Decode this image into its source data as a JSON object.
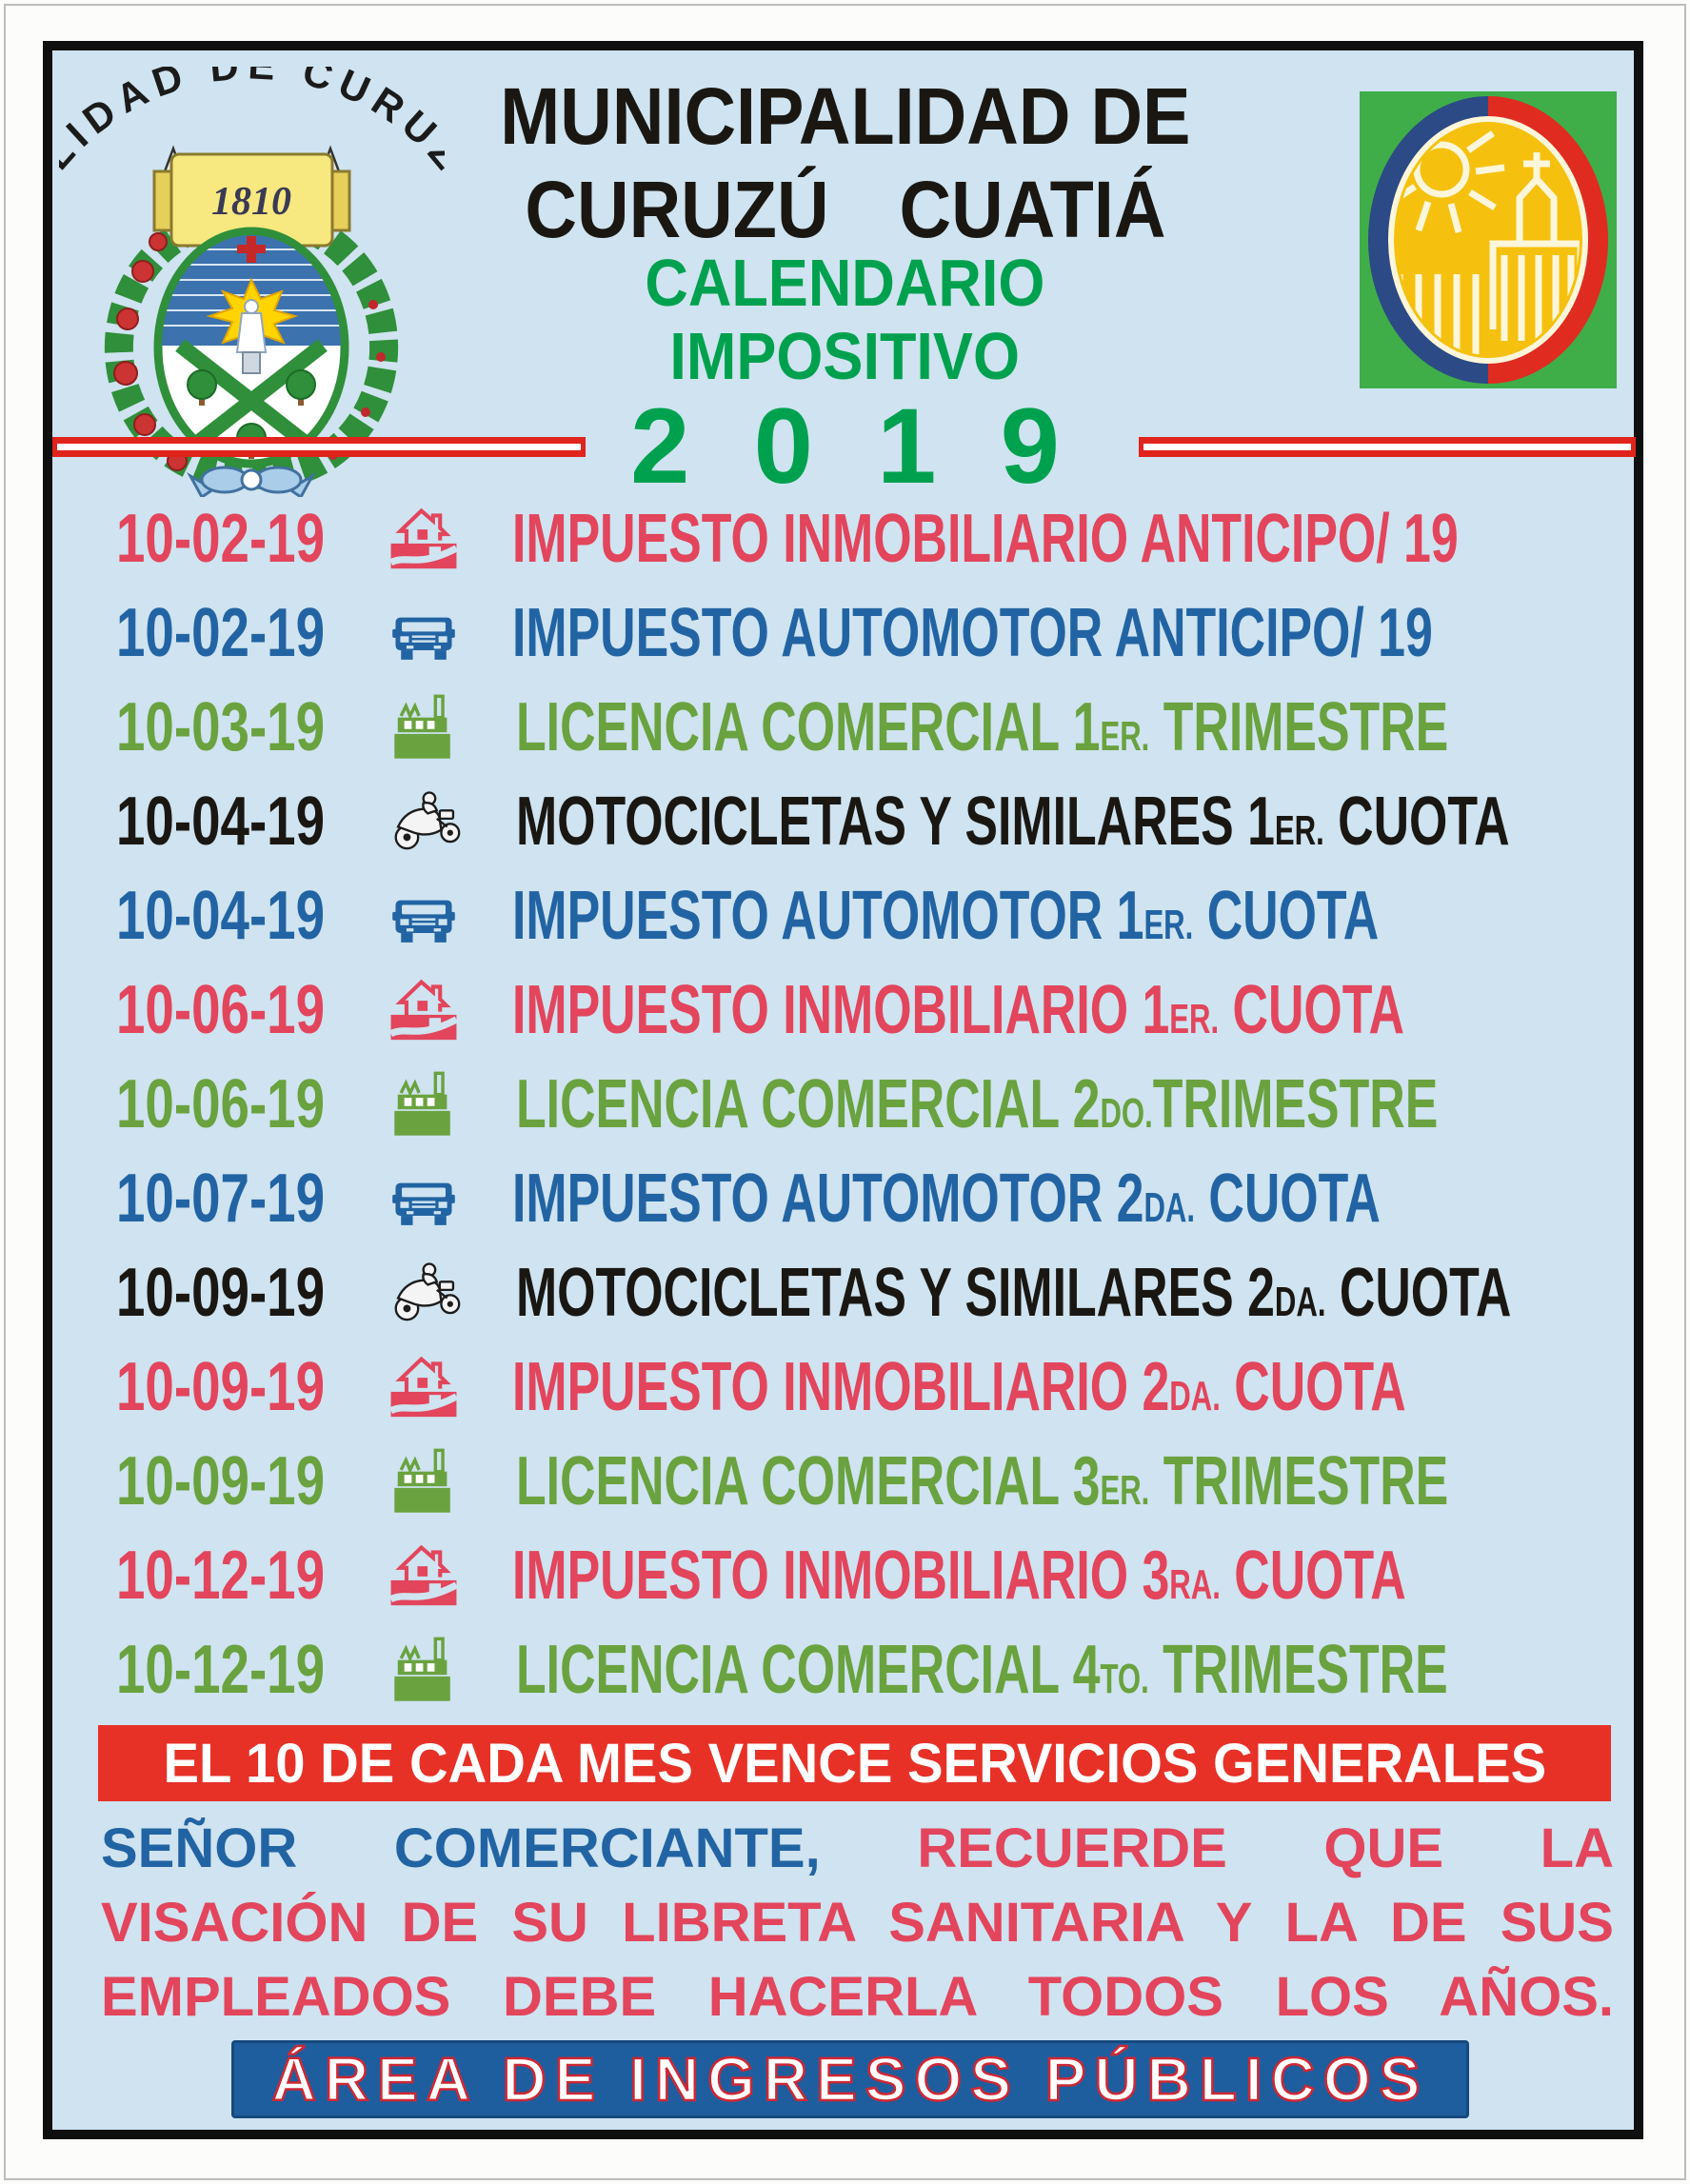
{
  "poster": {
    "header": {
      "crest": {
        "arc_text": "MUNICIPALIDAD DE CURUZU CUATIA",
        "banner_year": "1810"
      },
      "org_line1": "MUNICIPALIDAD DE",
      "org_line2": "CURUZÚ CUATIÁ",
      "calendar_line1": "CALENDARIO",
      "calendar_line2": "IMPOSITIVO",
      "year": "2019"
    },
    "rows": [
      {
        "date": "10-02-19",
        "icon": "house-icon",
        "color": "red",
        "label": [
          {
            "t": "IMPUESTO INMOBILIARIO ANTICIPO/ 19"
          }
        ]
      },
      {
        "date": "10-02-19",
        "icon": "car-icon",
        "color": "blue",
        "label": [
          {
            "t": "IMPUESTO AUTOMOTOR ANTICIPO/ 19"
          }
        ]
      },
      {
        "date": "10-03-19",
        "icon": "factory-icon",
        "color": "green",
        "label": [
          {
            "t": "LICENCIA COMERCIAL 1"
          },
          {
            "t": "ER.",
            "small": true
          },
          {
            "t": " TRIMESTRE"
          }
        ]
      },
      {
        "date": "10-04-19",
        "icon": "motorcycle-icon",
        "color": "black",
        "label": [
          {
            "t": "MOTOCICLETAS Y SIMILARES 1"
          },
          {
            "t": "ER.",
            "small": true
          },
          {
            "t": " CUOTA"
          }
        ]
      },
      {
        "date": "10-04-19",
        "icon": "car-icon",
        "color": "blue",
        "label": [
          {
            "t": "IMPUESTO AUTOMOTOR 1"
          },
          {
            "t": "ER.",
            "small": true
          },
          {
            "t": " CUOTA"
          }
        ]
      },
      {
        "date": "10-06-19",
        "icon": "house-icon",
        "color": "red",
        "label": [
          {
            "t": "IMPUESTO INMOBILIARIO 1"
          },
          {
            "t": "ER.",
            "small": true
          },
          {
            "t": " CUOTA"
          }
        ]
      },
      {
        "date": "10-06-19",
        "icon": "factory-icon",
        "color": "green",
        "label": [
          {
            "t": "LICENCIA COMERCIAL 2"
          },
          {
            "t": "DO.",
            "small": true
          },
          {
            "t": "TRIMESTRE"
          }
        ]
      },
      {
        "date": "10-07-19",
        "icon": "car-icon",
        "color": "blue",
        "label": [
          {
            "t": "IMPUESTO AUTOMOTOR 2"
          },
          {
            "t": "DA.",
            "small": true
          },
          {
            "t": " CUOTA"
          }
        ]
      },
      {
        "date": "10-09-19",
        "icon": "motorcycle-icon",
        "color": "black",
        "label": [
          {
            "t": "MOTOCICLETAS Y SIMILARES 2"
          },
          {
            "t": "DA.",
            "small": true
          },
          {
            "t": " CUOTA"
          }
        ]
      },
      {
        "date": "10-09-19",
        "icon": "house-icon",
        "color": "red",
        "label": [
          {
            "t": "IMPUESTO INMOBILIARIO 2"
          },
          {
            "t": "DA.",
            "small": true
          },
          {
            "t": " CUOTA"
          }
        ]
      },
      {
        "date": "10-09-19",
        "icon": "factory-icon",
        "color": "green",
        "label": [
          {
            "t": "LICENCIA COMERCIAL 3"
          },
          {
            "t": "ER.",
            "small": true
          },
          {
            "t": " TRIMESTRE"
          }
        ]
      },
      {
        "date": "10-12-19",
        "icon": "house-icon",
        "color": "red",
        "label": [
          {
            "t": "IMPUESTO INMOBILIARIO 3"
          },
          {
            "t": "RA.",
            "small": true
          },
          {
            "t": " CUOTA"
          }
        ]
      },
      {
        "date": "10-12-19",
        "icon": "factory-icon",
        "color": "green",
        "label": [
          {
            "t": "LICENCIA COMERCIAL 4"
          },
          {
            "t": "TO.",
            "small": true
          },
          {
            "t": " TRIMESTRE"
          }
        ]
      }
    ],
    "services_banner": "EL 10 DE CADA MES VENCE SERVICIOS GENERALES",
    "notice_lines": [
      [
        {
          "t": "SEÑOR COMERCIANTE,",
          "c": "blue"
        },
        {
          "t": "RECUERDE QUE LA",
          "c": "red"
        }
      ],
      [
        {
          "t": "VISACIÓN DE SU LIBRETA SANITARIA Y LA DE SUS",
          "c": "red"
        }
      ],
      [
        {
          "t": "EMPLEADOS DEBE HACERLA TODOS LOS AÑOS.",
          "c": "red"
        }
      ]
    ],
    "footer_banner": "ÁREA DE INGRESOS PÚBLICOS",
    "colors": {
      "background": "#cfe3f0",
      "row_red": "#e2455c",
      "row_blue": "#2264a3",
      "row_green": "#6aa23f",
      "row_black": "#1a1713",
      "header_green": "#00a14e",
      "services_banner_red": "#e73127",
      "footer_blue": "#1f5e9e",
      "decorative_line_red": "#e0241c"
    }
  }
}
